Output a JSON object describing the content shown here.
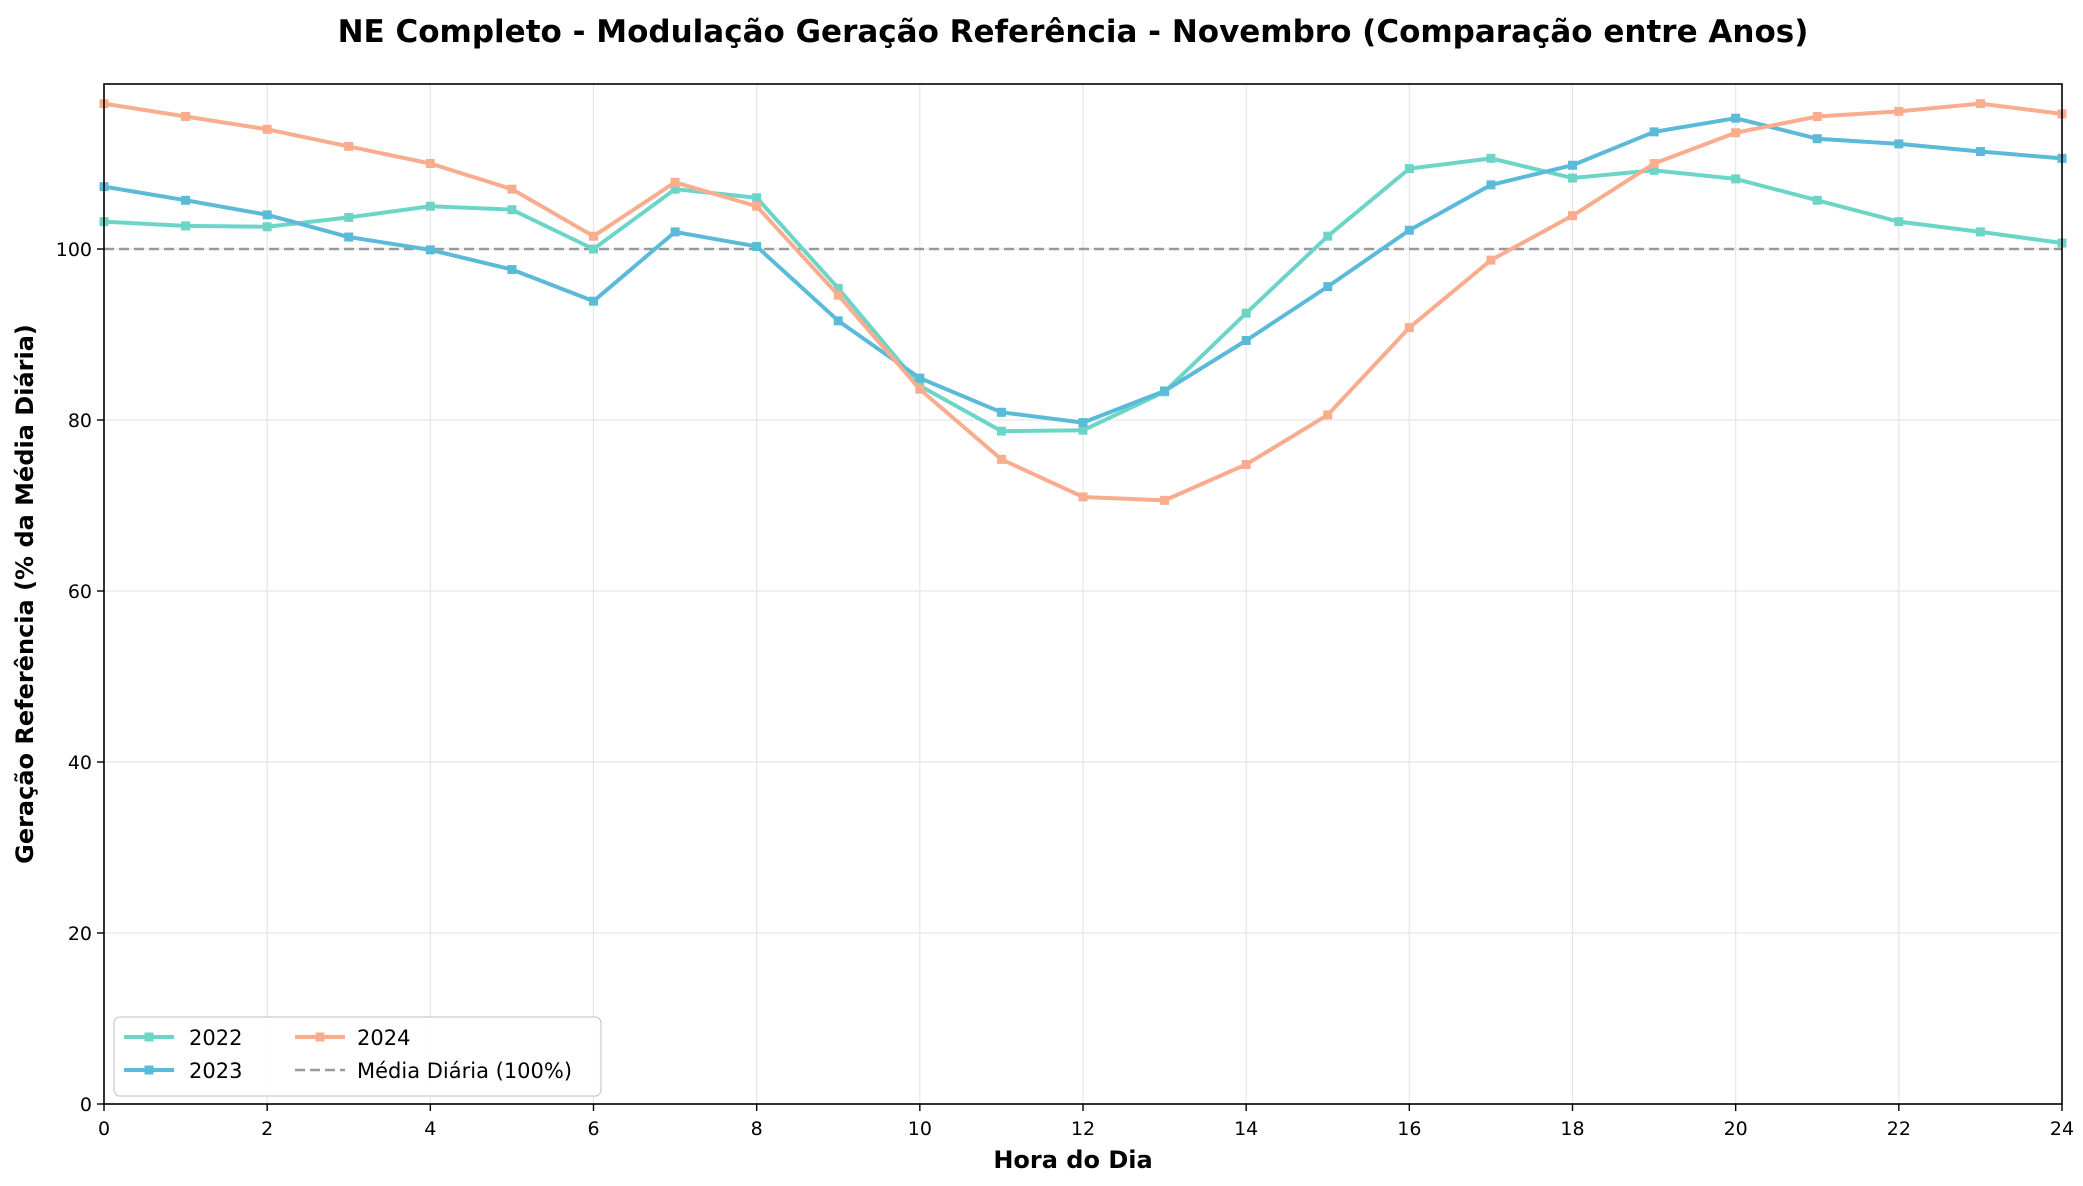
{
  "chart_data": {
    "type": "line",
    "title": "NE Completo - Modulação Geração Referência - Novembro (Comparação entre Anos)",
    "xlabel": "Hora do Dia",
    "ylabel": "Geração Referência (% da Média Diária)",
    "xlim": [
      0,
      24
    ],
    "ylim": [
      0,
      119.3
    ],
    "xticks": [
      0,
      2,
      4,
      6,
      8,
      10,
      12,
      14,
      16,
      18,
      20,
      22,
      24
    ],
    "yticks": [
      0,
      20,
      40,
      60,
      80,
      100
    ],
    "grid": true,
    "legend_position": "lower-left",
    "x": [
      0,
      1,
      2,
      3,
      4,
      5,
      6,
      7,
      8,
      9,
      10,
      11,
      12,
      13,
      14,
      15,
      16,
      17,
      18,
      19,
      20,
      21,
      22,
      23,
      24
    ],
    "series": [
      {
        "name": "2022",
        "color": "#6dd5c7",
        "values": [
          103.2,
          102.7,
          102.6,
          103.7,
          105.0,
          104.6,
          100.0,
          107.0,
          106.0,
          95.4,
          84.0,
          78.7,
          78.8,
          83.3,
          92.5,
          101.5,
          109.4,
          110.6,
          108.3,
          109.2,
          108.2,
          105.7,
          103.2,
          102.0,
          100.7
        ]
      },
      {
        "name": "2023",
        "color": "#5bbad8",
        "values": [
          107.3,
          105.7,
          104.0,
          101.4,
          99.9,
          97.6,
          93.9,
          102.0,
          100.3,
          91.6,
          84.9,
          80.9,
          79.7,
          83.4,
          89.3,
          95.6,
          102.2,
          107.5,
          109.8,
          113.7,
          115.3,
          112.9,
          112.3,
          111.4,
          110.6
        ]
      },
      {
        "name": "2024",
        "color": "#f9ac8e",
        "values": [
          117.0,
          115.5,
          114.0,
          112.0,
          110.0,
          107.0,
          101.5,
          107.8,
          105.0,
          94.6,
          83.6,
          75.4,
          71.0,
          70.6,
          74.8,
          80.6,
          90.8,
          98.7,
          103.9,
          110.0,
          113.6,
          115.5,
          116.1,
          117.0,
          115.8
        ]
      }
    ],
    "reference_line": {
      "name": "Média Diária (100%)",
      "value": 100,
      "color": "#999999"
    }
  }
}
